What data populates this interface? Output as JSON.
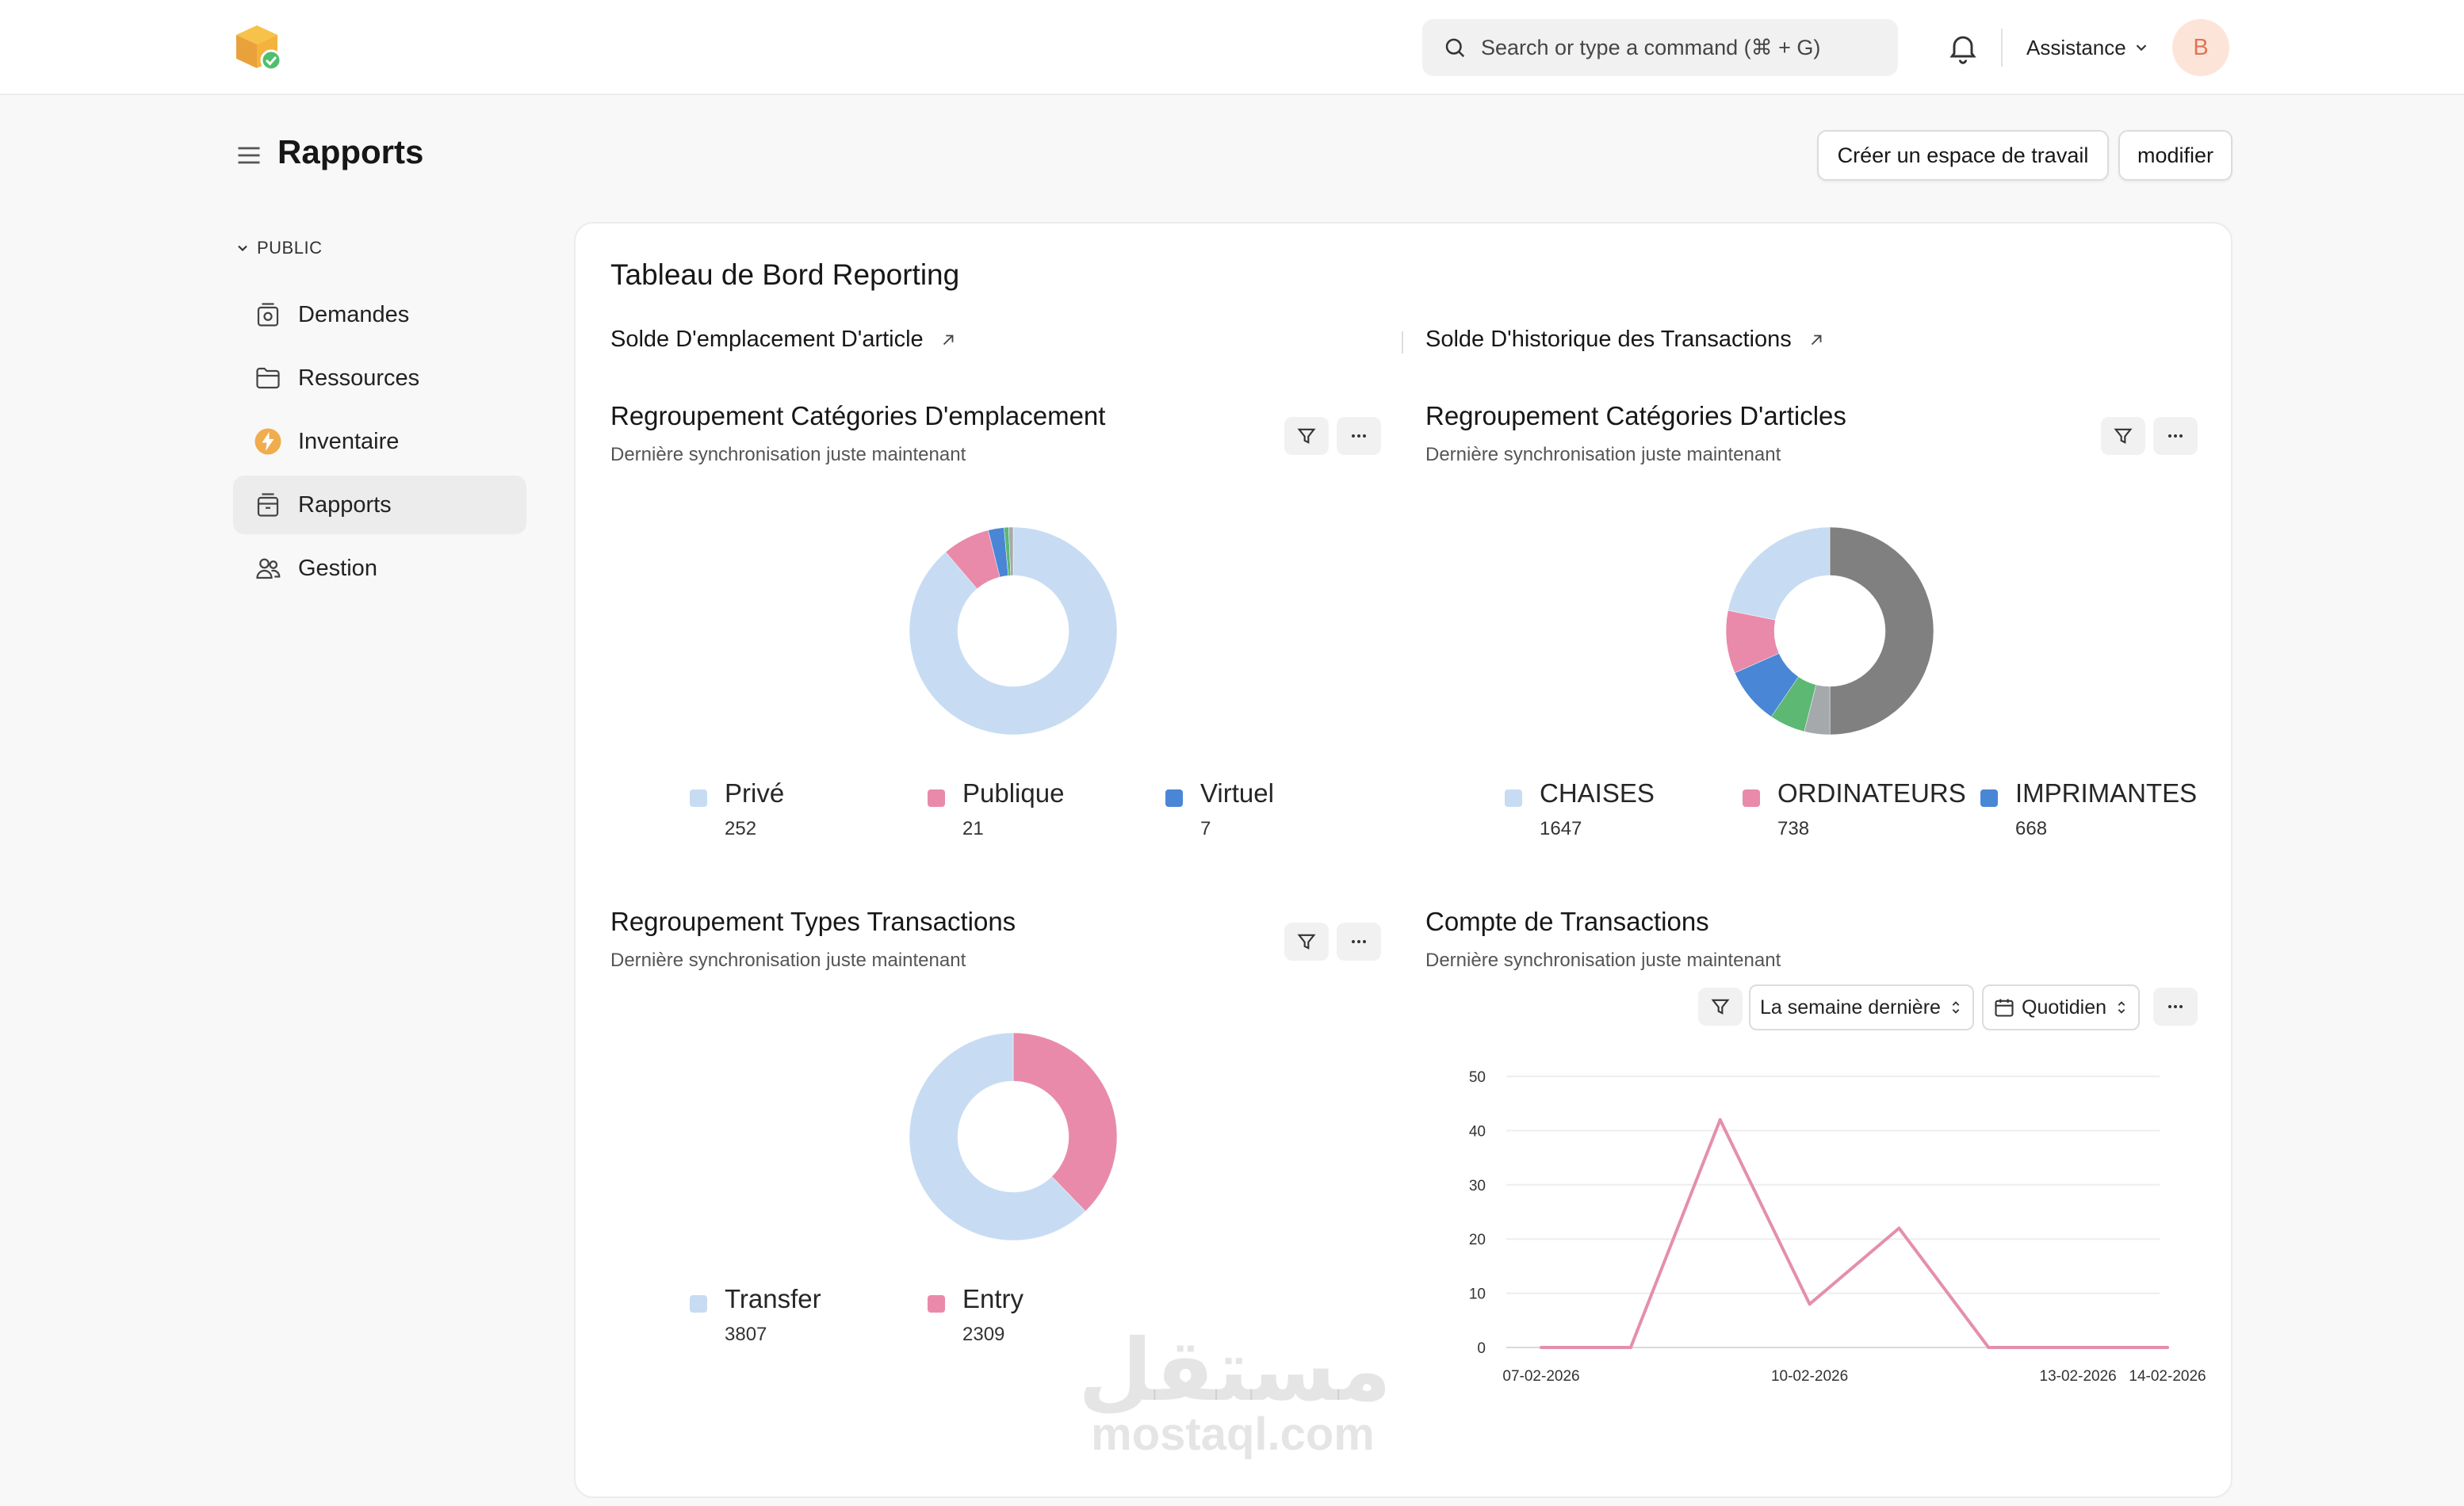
{
  "header": {
    "search_placeholder": "Search or type a command (⌘ + G)",
    "help_label": "Assistance",
    "avatar_initial": "B"
  },
  "page": {
    "title": "Rapports",
    "create_workspace_label": "Créer un espace de travail",
    "edit_label": "modifier"
  },
  "sidebar": {
    "section": "PUBLIC",
    "items": [
      {
        "label": "Demandes",
        "icon": "request-icon"
      },
      {
        "label": "Ressources",
        "icon": "folder-icon"
      },
      {
        "label": "Inventaire",
        "icon": "lightning-icon"
      },
      {
        "label": "Rapports",
        "icon": "report-icon",
        "active": true
      },
      {
        "label": "Gestion",
        "icon": "users-icon"
      }
    ]
  },
  "dashboard": {
    "title": "Tableau de Bord Reporting",
    "links": [
      "Solde D'emplacement D'article",
      "Solde D'historique des Transactions"
    ],
    "sync_text": "Dernière synchronisation juste maintenant",
    "widgets": [
      {
        "title": "Regroupement Catégories D'emplacement",
        "legend": [
          {
            "label": "Privé",
            "value": "252"
          },
          {
            "label": "Publique",
            "value": "21"
          },
          {
            "label": "Virtuel",
            "value": "7"
          }
        ]
      },
      {
        "title": "Regroupement Catégories D'articles",
        "legend": [
          {
            "label": "CHAISES",
            "value": "1647"
          },
          {
            "label": "ORDINATEURS",
            "value": "738"
          },
          {
            "label": "IMPRIMANTES",
            "value": "668"
          }
        ]
      },
      {
        "title": "Regroupement Types Transactions",
        "legend": [
          {
            "label": "Transfer",
            "value": "3807"
          },
          {
            "label": "Entry",
            "value": "2309"
          }
        ]
      },
      {
        "title": "Compte de Transactions",
        "period": "La semaine dernière",
        "interval": "Quotidien"
      }
    ]
  },
  "colors": {
    "light_blue": "#c7dcf3",
    "pink": "#e98aab",
    "blue": "#4a86d6",
    "green": "#5cb873",
    "gray": "#a6a9ac",
    "dark_gray": "#808080",
    "line": "#e48fab"
  },
  "chart_data": [
    {
      "type": "pie",
      "variant": "donut",
      "slices": [
        {
          "label": "Privé",
          "value": 252,
          "color": "#c7dcf3"
        },
        {
          "label": "Publique",
          "value": 21,
          "color": "#e98aab"
        },
        {
          "label": "Virtuel",
          "value": 7,
          "color": "#4a86d6"
        },
        {
          "value": 2,
          "color": "#5cb873"
        },
        {
          "value": 2,
          "color": "#a6a9ac"
        }
      ]
    },
    {
      "type": "pie",
      "variant": "donut",
      "slices": [
        {
          "value": 3770,
          "color": "#808080"
        },
        {
          "value": 300,
          "color": "#a6a9ac"
        },
        {
          "value": 420,
          "color": "#5cb873"
        },
        {
          "label": "IMPRIMANTES",
          "value": 668,
          "color": "#4a86d6"
        },
        {
          "label": "ORDINATEURS",
          "value": 738,
          "color": "#e98aab"
        },
        {
          "label": "CHAISES",
          "value": 1647,
          "color": "#c7dcf3"
        }
      ]
    },
    {
      "type": "pie",
      "variant": "donut",
      "slices": [
        {
          "label": "Entry",
          "value": 2309,
          "color": "#e98aab"
        },
        {
          "label": "Transfer",
          "value": 3807,
          "color": "#c7dcf3"
        }
      ]
    },
    {
      "type": "line",
      "x": [
        "07-02-2026",
        "08-02-2026",
        "09-02-2026",
        "10-02-2026",
        "11-02-2026",
        "12-02-2026",
        "13-02-2026",
        "14-02-2026"
      ],
      "x_tick_labels": [
        "07-02-2026",
        "10-02-2026",
        "13-02-2026",
        "14-02-2026"
      ],
      "series": [
        {
          "values": [
            0,
            0,
            42,
            8,
            22,
            0,
            0,
            0
          ],
          "color": "#e48fab"
        }
      ],
      "y_ticks": [
        0,
        10,
        20,
        30,
        40,
        50
      ],
      "ylim": [
        0,
        50
      ],
      "grid": true
    }
  ]
}
